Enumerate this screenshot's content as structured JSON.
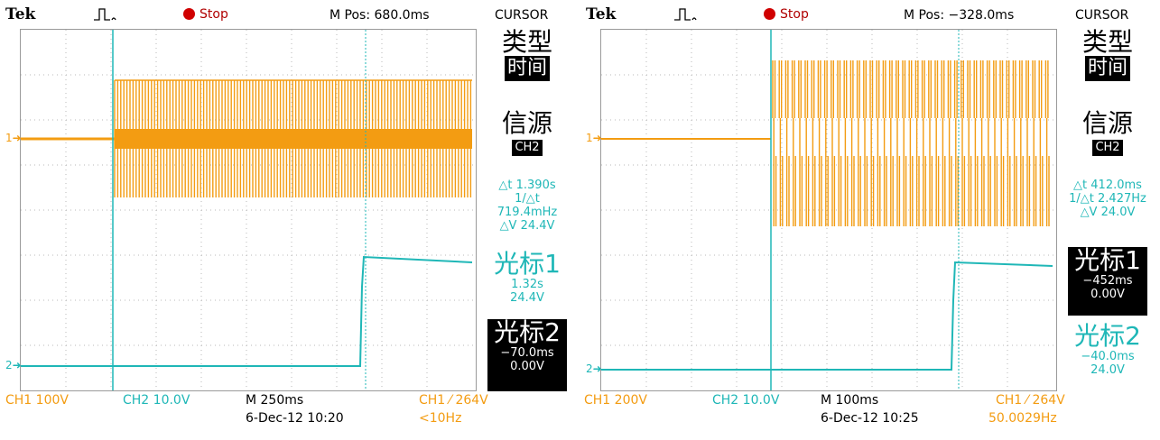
{
  "left": {
    "brand": "Tek",
    "run_state": "Stop",
    "m_pos": "M Pos: 680.0ms",
    "menu": "CURSOR",
    "type_label": "类型",
    "type_value": "时间",
    "source_label": "信源",
    "source_value": "CH2",
    "delta_t": "△t 1.390s",
    "inv_delta_t": "1/△t 719.4mHz",
    "delta_v": "△V 24.4V",
    "cursor1_label": "光标1",
    "cursor1_time": "1.32s",
    "cursor1_volt": "24.4V",
    "cursor2_label": "光标2",
    "cursor2_time": "−70.0ms",
    "cursor2_volt": "0.00V",
    "ch1_scale": "CH1  100V",
    "ch2_scale": "CH2  10.0V",
    "timebase": "M 250ms",
    "date": "6-Dec-12 10:20",
    "trigger": "CH1 ⁄ 264V",
    "freq": "<10Hz",
    "ch1_marker": "1",
    "ch2_marker": "2"
  },
  "right": {
    "brand": "Tek",
    "run_state": "Stop",
    "m_pos": "M Pos: −328.0ms",
    "menu": "CURSOR",
    "type_label": "类型",
    "type_value": "时间",
    "source_label": "信源",
    "source_value": "CH2",
    "delta_t": "△t 412.0ms",
    "inv_delta_t": "1/△t 2.427Hz",
    "delta_v": "△V 24.0V",
    "cursor1_label": "光标1",
    "cursor1_time": "−452ms",
    "cursor1_volt": "0.00V",
    "cursor2_label": "光标2",
    "cursor2_time": "−40.0ms",
    "cursor2_volt": "24.0V",
    "ch1_scale": "CH1  200V",
    "ch2_scale": "CH2  10.0V",
    "timebase": "M 100ms",
    "date": "6-Dec-12 10:25",
    "trigger": "CH1 ⁄ 264V",
    "freq": "50.0029Hz",
    "ch1_marker": "1",
    "ch2_marker": "2"
  },
  "colors": {
    "ch1": "#f39c12",
    "ch2": "#1fb7b7",
    "stop": "#d00000",
    "grid": "#9a9a9a"
  }
}
